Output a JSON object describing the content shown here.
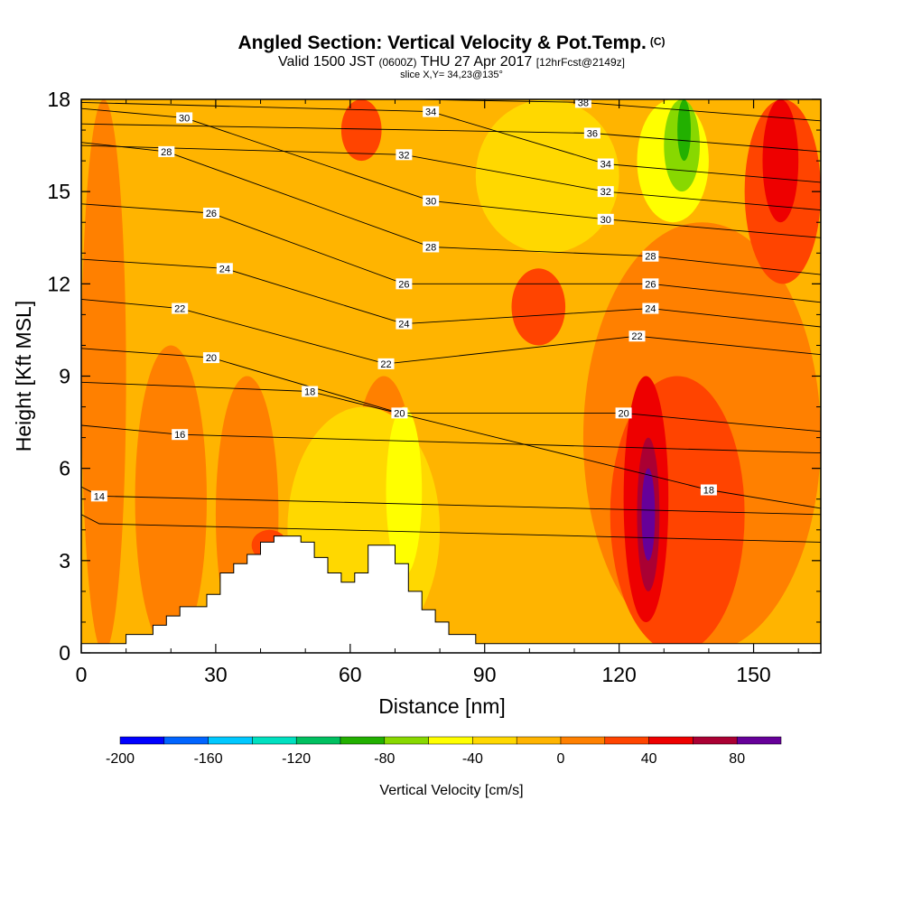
{
  "header": {
    "title": "Angled Section: Vertical Velocity & Pot.Temp.",
    "copyright": "(C)",
    "valid_prefix": "Valid 1500 JST",
    "utc": "(0600Z)",
    "valid_date": "THU 27 Apr 2017",
    "forecast": "[12hrFcst@2149z]",
    "slice": "slice X,Y= 34,23@135°"
  },
  "chart_data": {
    "type": "heatmap",
    "xlabel": "Distance [nm]",
    "ylabel": "Height [Kft MSL]",
    "xlim": [
      0,
      165
    ],
    "ylim": [
      0,
      18
    ],
    "x_ticks": [
      0,
      30,
      60,
      90,
      120,
      150
    ],
    "y_ticks": [
      0,
      3,
      6,
      9,
      12,
      15,
      18
    ],
    "colorbar": {
      "label": "Vertical Velocity [cm/s]",
      "range": [
        -200,
        100
      ],
      "step": 20,
      "tick_labels": [
        -200,
        -160,
        -120,
        -80,
        -40,
        0,
        40,
        80
      ],
      "colors": [
        "#0000ff",
        "#0064ff",
        "#00c8ff",
        "#00e0c0",
        "#00c060",
        "#22b000",
        "#88d800",
        "#ffff00",
        "#ffd800",
        "#ffb400",
        "#ff8000",
        "#ff4400",
        "#ee0000",
        "#aa0033",
        "#660099"
      ]
    },
    "vertical_velocity_regions": [
      {
        "value": -10,
        "x": [
          0,
          165
        ],
        "y": [
          0,
          18
        ]
      },
      {
        "value": 10,
        "x": [
          0,
          10
        ],
        "y": [
          0,
          18
        ]
      },
      {
        "value": 10,
        "x": [
          12,
          28
        ],
        "y": [
          0,
          10
        ]
      },
      {
        "value": 10,
        "x": [
          30,
          44
        ],
        "y": [
          0,
          9
        ]
      },
      {
        "value": 10,
        "x": [
          60,
          75
        ],
        "y": [
          0,
          9
        ]
      },
      {
        "value": 30,
        "x": [
          38,
          46
        ],
        "y": [
          3,
          4
        ]
      },
      {
        "value": -30,
        "x": [
          46,
          80
        ],
        "y": [
          0,
          8
        ]
      },
      {
        "value": -50,
        "x": [
          68,
          76
        ],
        "y": [
          2.5,
          8
        ]
      },
      {
        "value": -30,
        "x": [
          88,
          120
        ],
        "y": [
          13,
          18
        ]
      },
      {
        "value": 10,
        "x": [
          112,
          165
        ],
        "y": [
          0,
          14
        ]
      },
      {
        "value": 30,
        "x": [
          96,
          108
        ],
        "y": [
          10,
          12.5
        ]
      },
      {
        "value": 30,
        "x": [
          118,
          148
        ],
        "y": [
          0,
          9
        ]
      },
      {
        "value": 50,
        "x": [
          121,
          131
        ],
        "y": [
          1,
          9
        ]
      },
      {
        "value": 70,
        "x": [
          124,
          129
        ],
        "y": [
          2,
          7
        ]
      },
      {
        "value": 90,
        "x": [
          125,
          128
        ],
        "y": [
          3,
          6
        ]
      },
      {
        "value": -50,
        "x": [
          124,
          140
        ],
        "y": [
          14,
          18
        ]
      },
      {
        "value": -70,
        "x": [
          130,
          138
        ],
        "y": [
          15,
          18
        ]
      },
      {
        "value": -90,
        "x": [
          133,
          136
        ],
        "y": [
          16,
          18
        ]
      },
      {
        "value": 30,
        "x": [
          58,
          67
        ],
        "y": [
          16,
          18
        ]
      },
      {
        "value": 30,
        "x": [
          148,
          165
        ],
        "y": [
          12,
          18
        ]
      },
      {
        "value": 50,
        "x": [
          152,
          160
        ],
        "y": [
          14,
          18
        ]
      }
    ],
    "potential_temperature_labels": [
      {
        "text": "30",
        "x": 23,
        "y": 17.4
      },
      {
        "text": "28",
        "x": 19,
        "y": 16.3
      },
      {
        "text": "26",
        "x": 29,
        "y": 14.3
      },
      {
        "text": "24",
        "x": 32,
        "y": 12.5
      },
      {
        "text": "22",
        "x": 22,
        "y": 11.2
      },
      {
        "text": "20",
        "x": 29,
        "y": 9.6
      },
      {
        "text": "18",
        "x": 51,
        "y": 8.5
      },
      {
        "text": "16",
        "x": 22,
        "y": 7.1
      },
      {
        "text": "14",
        "x": 4,
        "y": 5.1
      },
      {
        "text": "34",
        "x": 78,
        "y": 17.6
      },
      {
        "text": "32",
        "x": 72,
        "y": 16.2
      },
      {
        "text": "30",
        "x": 78,
        "y": 14.7
      },
      {
        "text": "28",
        "x": 78,
        "y": 13.2
      },
      {
        "text": "26",
        "x": 72,
        "y": 12.0
      },
      {
        "text": "24",
        "x": 72,
        "y": 10.7
      },
      {
        "text": "22",
        "x": 68,
        "y": 9.4
      },
      {
        "text": "20",
        "x": 71,
        "y": 7.8
      },
      {
        "text": "38",
        "x": 112,
        "y": 17.9
      },
      {
        "text": "36",
        "x": 114,
        "y": 16.9
      },
      {
        "text": "34",
        "x": 117,
        "y": 15.9
      },
      {
        "text": "32",
        "x": 117,
        "y": 15.0
      },
      {
        "text": "30",
        "x": 117,
        "y": 14.1
      },
      {
        "text": "28",
        "x": 127,
        "y": 12.9
      },
      {
        "text": "26",
        "x": 127,
        "y": 12.0
      },
      {
        "text": "24",
        "x": 127,
        "y": 11.2
      },
      {
        "text": "22",
        "x": 124,
        "y": 10.3
      },
      {
        "text": "20",
        "x": 121,
        "y": 7.8
      },
      {
        "text": "18",
        "x": 140,
        "y": 5.3
      }
    ],
    "terrain": {
      "x": [
        0,
        10,
        10,
        16,
        16,
        19,
        19,
        22,
        22,
        25,
        25,
        28,
        28,
        31,
        31,
        34,
        34,
        37,
        37,
        40,
        40,
        43,
        43,
        46,
        46,
        49,
        49,
        52,
        52,
        55,
        55,
        58,
        58,
        61,
        61,
        64,
        64,
        67,
        67,
        70,
        70,
        73,
        73,
        76,
        76,
        79,
        79,
        82,
        82,
        85,
        85,
        88,
        88,
        91,
        91,
        165
      ],
      "y": [
        0.3,
        0.3,
        0.6,
        0.6,
        0.9,
        0.9,
        1.2,
        1.2,
        1.5,
        1.5,
        1.5,
        1.5,
        1.9,
        1.9,
        2.6,
        2.6,
        2.9,
        2.9,
        3.2,
        3.2,
        3.6,
        3.6,
        3.8,
        3.8,
        3.8,
        3.8,
        3.6,
        3.6,
        3.1,
        3.1,
        2.6,
        2.6,
        2.3,
        2.3,
        2.6,
        2.6,
        3.5,
        3.5,
        3.5,
        3.5,
        2.9,
        2.9,
        2.0,
        2.0,
        1.4,
        1.4,
        1.0,
        1.0,
        0.6,
        0.6,
        0.6,
        0.6,
        0.3,
        0.3,
        0.3,
        0.3
      ]
    }
  }
}
